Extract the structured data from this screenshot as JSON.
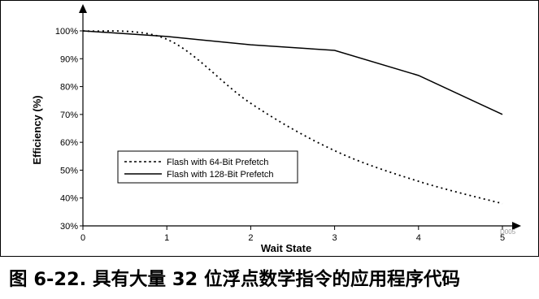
{
  "figure": {
    "caption": "图 6-22. 具有大量 32 位浮点数学指令的应用程序代码",
    "code": "D005"
  },
  "chart_data": {
    "type": "line",
    "xlabel": "Wait State",
    "ylabel": "Efficiency (%)",
    "x": [
      0,
      1,
      2,
      3,
      4,
      5
    ],
    "xlim": [
      0,
      5
    ],
    "ylim": [
      30,
      100
    ],
    "x_ticks": [
      "0",
      "1",
      "2",
      "3",
      "4",
      "5"
    ],
    "y_ticks": [
      "30%",
      "40%",
      "50%",
      "60%",
      "70%",
      "80%",
      "90%",
      "100%"
    ],
    "grid": false,
    "legend_position": "lower-left",
    "series": [
      {
        "name": "Flash with 64-Bit Prefetch",
        "style": "dotted",
        "color": "#000000",
        "values": [
          100,
          97,
          74,
          57,
          46,
          38
        ]
      },
      {
        "name": "Flash with 128-Bit Prefetch",
        "style": "solid",
        "color": "#000000",
        "values": [
          100,
          98,
          95,
          93,
          84,
          70
        ]
      }
    ]
  }
}
